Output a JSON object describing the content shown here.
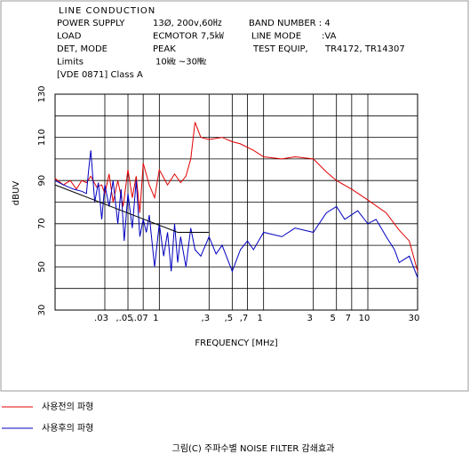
{
  "header": {
    "title": "LINE CONDUCTION",
    "rows": [
      [
        "POWER SUPPLY",
        "13Ø, 200v,60㎐",
        "BAND NUMBER : 4"
      ],
      [
        "LOAD",
        "ECMOTOR 7,5㎾",
        "LINE MODE",
        ":VA"
      ],
      [
        "DET, MODE",
        "PEAK",
        "TEST EQUIP,",
        "TR4172, TR14307"
      ],
      [
        "Limits",
        "10㎑ ~30㎒"
      ],
      [
        "[VDE 0871] Class A"
      ]
    ]
  },
  "chart_data": {
    "type": "line",
    "xlabel": "FREQUENCY [MHz]",
    "ylabel": "dBUV",
    "xscale": "log",
    "grid": true,
    "xlim": [
      0.01,
      30
    ],
    "ylim": [
      30,
      130
    ],
    "yticks": [
      30,
      50,
      70,
      90,
      110,
      130
    ],
    "xticks": [
      {
        "value": 0.03,
        "label": ".03"
      },
      {
        "value": 0.05,
        "label": ",.05"
      },
      {
        "value": 0.07,
        "label": ",.07"
      },
      {
        "value": 0.1,
        "label": "1"
      },
      {
        "value": 0.3,
        "label": ",3"
      },
      {
        "value": 0.5,
        "label": ",5"
      },
      {
        "value": 0.7,
        "label": ",7"
      },
      {
        "value": 1,
        "label": "1"
      },
      3,
      5,
      7,
      10,
      30
    ],
    "series": [
      {
        "name": "사용전의 파형",
        "color": "#e00000",
        "x": [
          0.01,
          0.012,
          0.014,
          0.016,
          0.018,
          0.02,
          0.022,
          0.025,
          0.028,
          0.03,
          0.033,
          0.036,
          0.04,
          0.045,
          0.05,
          0.055,
          0.06,
          0.065,
          0.07,
          0.08,
          0.09,
          0.1,
          0.12,
          0.14,
          0.16,
          0.18,
          0.2,
          0.22,
          0.25,
          0.3,
          0.4,
          0.5,
          0.6,
          0.8,
          1,
          1.5,
          2,
          3,
          4,
          5,
          7,
          10,
          15,
          20,
          25,
          30
        ],
        "values": [
          91,
          88,
          90,
          86,
          90,
          89,
          92,
          87,
          88,
          84,
          93,
          80,
          90,
          78,
          95,
          82,
          92,
          75,
          98,
          88,
          82,
          95,
          88,
          93,
          89,
          92,
          100,
          117,
          110,
          109,
          110,
          108,
          107,
          104,
          101,
          100,
          101,
          100,
          94,
          90,
          86,
          81,
          75,
          67,
          62,
          48
        ]
      },
      {
        "name": "사용후의 파형",
        "color": "#0000c0",
        "x": [
          0.01,
          0.012,
          0.015,
          0.018,
          0.02,
          0.021,
          0.022,
          0.024,
          0.026,
          0.028,
          0.03,
          0.033,
          0.036,
          0.04,
          0.043,
          0.046,
          0.05,
          0.055,
          0.06,
          0.065,
          0.07,
          0.075,
          0.08,
          0.09,
          0.1,
          0.11,
          0.12,
          0.13,
          0.14,
          0.15,
          0.16,
          0.18,
          0.2,
          0.22,
          0.25,
          0.3,
          0.35,
          0.4,
          0.5,
          0.6,
          0.7,
          0.8,
          1,
          1.5,
          2,
          3,
          4,
          5,
          6,
          8,
          10,
          12,
          15,
          18,
          20,
          25,
          30
        ],
        "values": [
          90,
          88,
          86,
          85,
          84,
          95,
          104,
          80,
          89,
          72,
          88,
          78,
          90,
          70,
          86,
          62,
          84,
          68,
          90,
          64,
          72,
          66,
          74,
          50,
          70,
          55,
          66,
          48,
          70,
          52,
          64,
          50,
          68,
          58,
          55,
          64,
          56,
          60,
          48,
          58,
          62,
          58,
          66,
          64,
          68,
          66,
          75,
          78,
          72,
          76,
          70,
          72,
          64,
          58,
          52,
          55,
          45
        ]
      },
      {
        "color": "#000000",
        "x": [
          0.01,
          0.15,
          0.3
        ],
        "values": [
          88,
          66,
          66
        ]
      }
    ],
    "caption": "그림(C) 주파수별 NOISE FILTER 감쇄효과"
  }
}
